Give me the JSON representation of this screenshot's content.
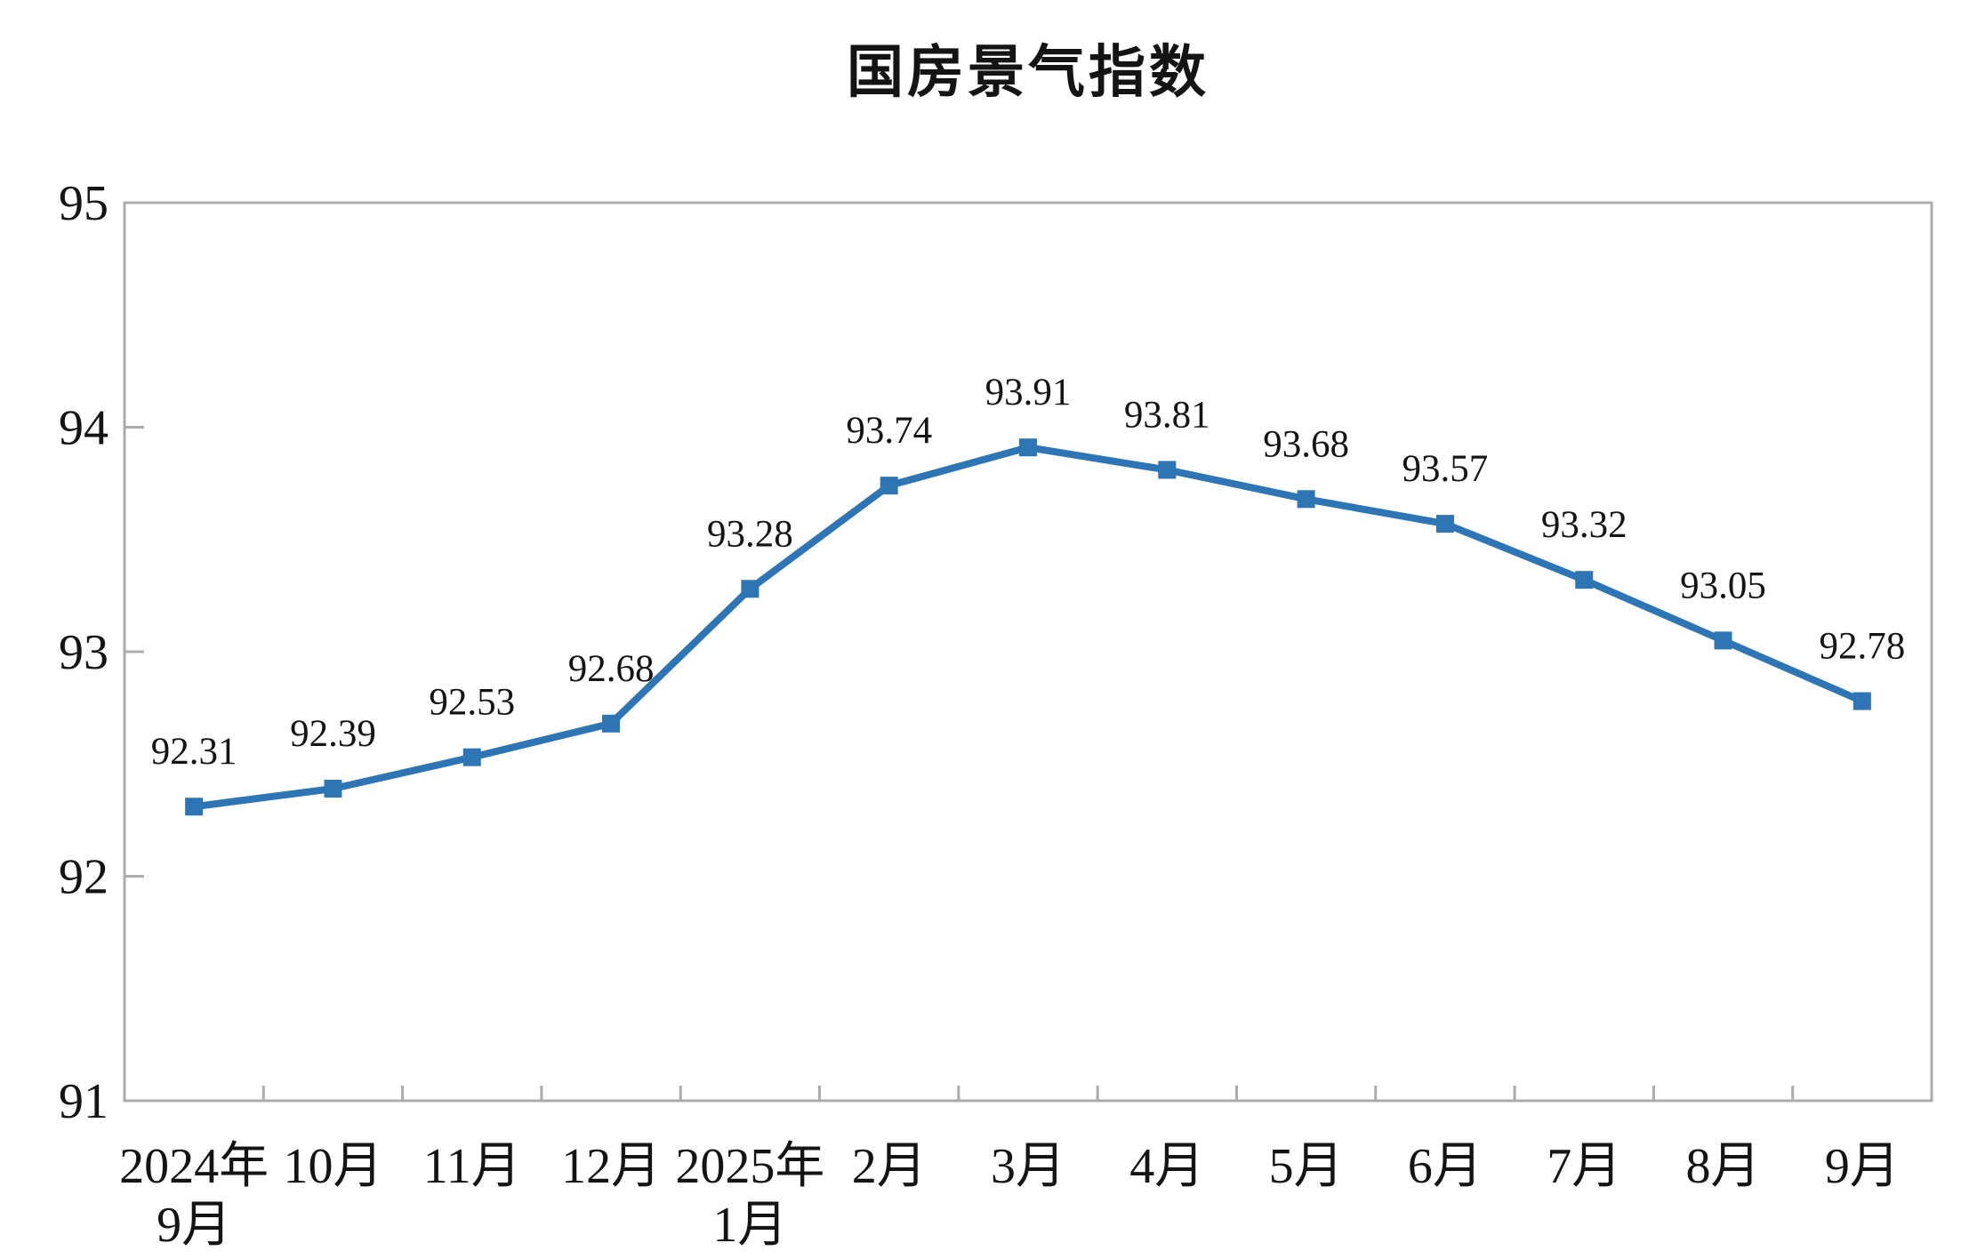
{
  "page": {
    "background": "#ffffff"
  },
  "chart_data": {
    "type": "line",
    "title": "国房景气指数",
    "categories": [
      "2024年\n9月",
      "10月",
      "11月",
      "12月",
      "2025年\n1月",
      "2月",
      "3月",
      "4月",
      "5月",
      "6月",
      "7月",
      "8月",
      "9月"
    ],
    "series": [
      {
        "name": "国房景气指数",
        "values": [
          92.31,
          92.39,
          92.53,
          92.68,
          93.28,
          93.74,
          93.91,
          93.81,
          93.68,
          93.57,
          93.32,
          93.05,
          92.78
        ],
        "data_labels": [
          "92.31",
          "92.39",
          "92.53",
          "92.68",
          "93.28",
          "93.74",
          "93.91",
          "93.81",
          "93.68",
          "93.57",
          "93.32",
          "93.05",
          "92.78"
        ]
      }
    ],
    "xlabel": "",
    "ylabel": "",
    "ylim": [
      91,
      95
    ],
    "yticks": [
      91,
      92,
      93,
      94,
      95
    ],
    "grid": false,
    "legend_position": "none",
    "marker_shape": "square",
    "colors": {
      "line": "#2E75B6",
      "marker": "#2E75B6",
      "axis": "#ABABAB",
      "text": "#141414",
      "data_label_text": "#141414"
    }
  }
}
